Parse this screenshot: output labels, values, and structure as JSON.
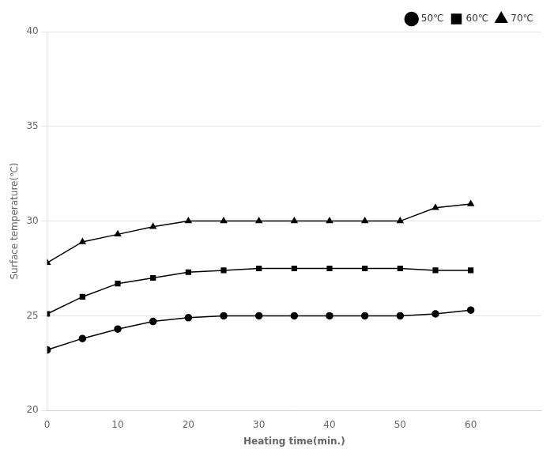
{
  "chart_data": {
    "type": "line",
    "x_label": "Heating time(min.)",
    "y_label": "Surface temperature(℃)",
    "x": [
      0,
      5,
      10,
      15,
      20,
      25,
      30,
      35,
      40,
      45,
      50,
      55,
      60
    ],
    "series": [
      {
        "name": "50℃",
        "color": "#000000",
        "marker": "circle",
        "values": [
          23.2,
          23.8,
          24.3,
          24.7,
          24.9,
          25.0,
          25.0,
          25.0,
          25.0,
          25.0,
          25.0,
          25.1,
          25.3
        ]
      },
      {
        "name": "60℃",
        "color": "#000000",
        "marker": "square",
        "values": [
          25.1,
          26.0,
          26.7,
          27.0,
          27.3,
          27.4,
          27.5,
          27.5,
          27.5,
          27.5,
          27.5,
          27.4,
          27.4
        ]
      },
      {
        "name": "70℃",
        "color": "#000000",
        "marker": "triangle",
        "values": [
          27.8,
          28.9,
          29.3,
          29.7,
          30.0,
          30.0,
          30.0,
          30.0,
          30.0,
          30.0,
          30.0,
          30.7,
          30.9
        ]
      }
    ],
    "xlim": [
      0,
      70
    ],
    "ylim": [
      20,
      40
    ],
    "xticks": [
      0,
      10,
      20,
      30,
      40,
      50,
      60
    ],
    "yticks": [
      20,
      25,
      30,
      35,
      40
    ],
    "grid": "y",
    "legend": "upper right"
  }
}
